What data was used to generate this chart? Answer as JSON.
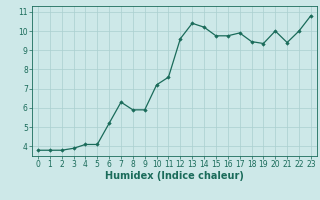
{
  "title": "",
  "xlabel": "Humidex (Indice chaleur)",
  "ylabel": "",
  "x": [
    0,
    1,
    2,
    3,
    4,
    5,
    6,
    7,
    8,
    9,
    10,
    11,
    12,
    13,
    14,
    15,
    16,
    17,
    18,
    19,
    20,
    21,
    22,
    23
  ],
  "y": [
    3.8,
    3.8,
    3.8,
    3.9,
    4.1,
    4.1,
    5.2,
    6.3,
    5.9,
    5.9,
    7.2,
    7.6,
    9.6,
    10.4,
    10.2,
    9.75,
    9.75,
    9.9,
    9.45,
    9.35,
    10.0,
    9.4,
    10.0,
    10.8
  ],
  "line_color": "#1a6b5a",
  "marker": "D",
  "marker_size": 1.8,
  "background_color": "#cde8e8",
  "grid_color": "#aacfcf",
  "ylim": [
    3.5,
    11.3
  ],
  "xlim": [
    -0.5,
    23.5
  ],
  "yticks": [
    4,
    5,
    6,
    7,
    8,
    9,
    10,
    11
  ],
  "xticks": [
    0,
    1,
    2,
    3,
    4,
    5,
    6,
    7,
    8,
    9,
    10,
    11,
    12,
    13,
    14,
    15,
    16,
    17,
    18,
    19,
    20,
    21,
    22,
    23
  ],
  "tick_fontsize": 5.5,
  "xlabel_fontsize": 7.0,
  "axis_color": "#1a6b5a",
  "linewidth": 0.9
}
